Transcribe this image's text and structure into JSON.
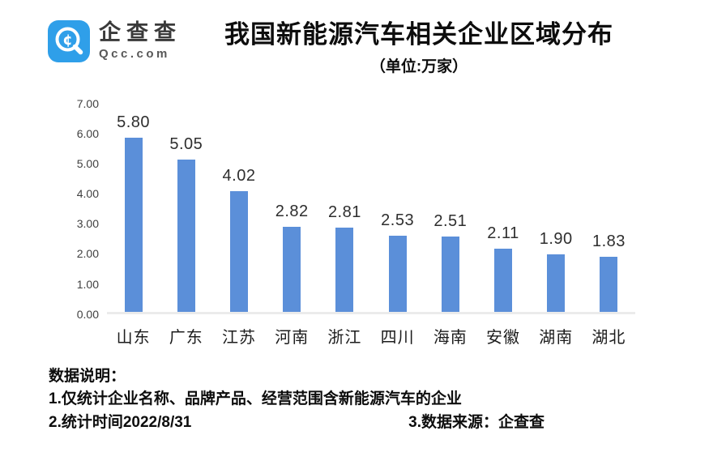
{
  "header": {
    "logo": {
      "brand_cn": "企查查",
      "brand_en": "Qcc.com",
      "icon_color": "#2f9fe9",
      "icon_symbol": "¢"
    },
    "title": "我国新能源汽车相关企业区域分布",
    "subtitle": "（单位:万家）"
  },
  "chart_data": {
    "type": "bar",
    "title": "我国新能源汽车相关企业区域分布",
    "unit_label": "（单位:万家）",
    "categories": [
      "山东",
      "广东",
      "江苏",
      "河南",
      "浙江",
      "四川",
      "海南",
      "安徽",
      "湖南",
      "湖北"
    ],
    "values": [
      5.8,
      5.05,
      4.02,
      2.82,
      2.81,
      2.53,
      2.51,
      2.11,
      1.9,
      1.83
    ],
    "value_labels": [
      "5.80",
      "5.05",
      "4.02",
      "2.82",
      "2.81",
      "2.53",
      "2.51",
      "2.11",
      "1.90",
      "1.83"
    ],
    "xlabel": "",
    "ylabel": "",
    "ylim": [
      0,
      7
    ],
    "yticks": [
      "7.00",
      "6.00",
      "5.00",
      "4.00",
      "3.00",
      "2.00",
      "1.00",
      "0.00"
    ],
    "bar_color": "#5b8fd9",
    "grid": false,
    "legend_position": "none"
  },
  "footer": {
    "heading": "数据说明：",
    "note1": "1.仅统计企业名称、品牌产品、经营范围含新能源汽车的企业",
    "note2": "2.统计时间2022/8/31",
    "note3": "3.数据来源：企查查"
  }
}
